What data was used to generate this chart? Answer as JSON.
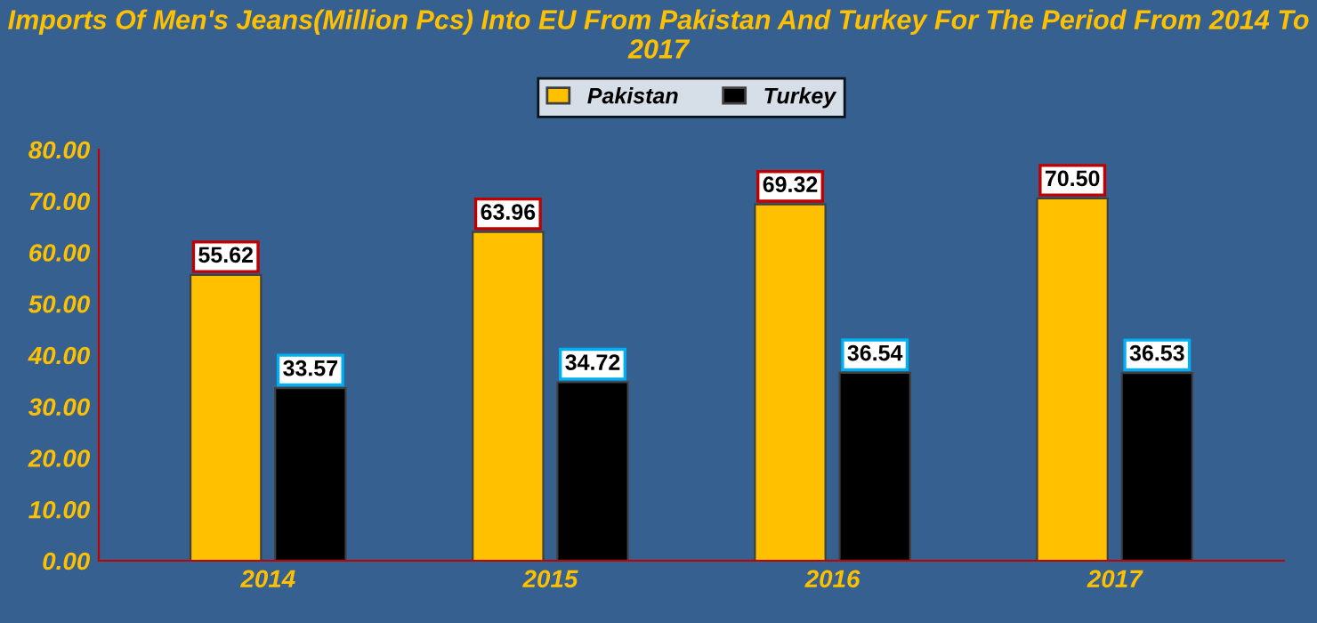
{
  "chart_data": {
    "type": "bar",
    "title": "Imports Of Men's Jeans(Million Pcs) Into EU From Pakistan And Turkey For The Period From 2014 To 2017",
    "categories": [
      "2014",
      "2015",
      "2016",
      "2017"
    ],
    "series": [
      {
        "name": "Pakistan",
        "color": "#ffc000",
        "values": [
          55.62,
          63.96,
          69.32,
          70.5
        ],
        "value_labels": [
          "55.62",
          "63.96",
          "69.32",
          "70.50"
        ]
      },
      {
        "name": "Turkey",
        "color": "#000000",
        "values": [
          33.57,
          34.72,
          36.54,
          36.53
        ],
        "value_labels": [
          "33.57",
          "34.72",
          "36.54",
          "36.53"
        ]
      }
    ],
    "ylim": [
      0,
      80
    ],
    "yticks": [
      {
        "value": 0,
        "label": "0.00"
      },
      {
        "value": 10,
        "label": "10.00"
      },
      {
        "value": 20,
        "label": "20.00"
      },
      {
        "value": 30,
        "label": "30.00"
      },
      {
        "value": 40,
        "label": "40.00"
      },
      {
        "value": 50,
        "label": "50.00"
      },
      {
        "value": 60,
        "label": "60.00"
      },
      {
        "value": 70,
        "label": "70.00"
      },
      {
        "value": 80,
        "label": "80.00"
      }
    ],
    "grid": false,
    "legend": "top"
  }
}
